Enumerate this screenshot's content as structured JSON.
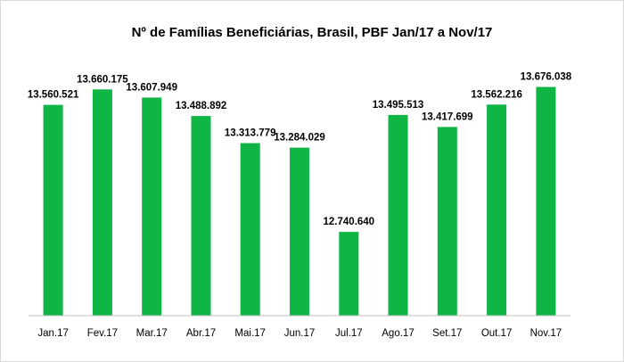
{
  "chart_data": {
    "type": "bar",
    "title": "Nº de Famílias Beneficiárias, Brasil, PBF Jan/17 a Nov/17",
    "xlabel": "",
    "ylabel": "",
    "categories": [
      "Jan.17",
      "Fev.17",
      "Mar.17",
      "Abr.17",
      "Mai.17",
      "Jun.17",
      "Jul.17",
      "Ago.17",
      "Set.17",
      "Out.17",
      "Nov.17"
    ],
    "values": [
      13560521,
      13660175,
      13607949,
      13488892,
      13313779,
      13284029,
      12740640,
      13495513,
      13417699,
      13562216,
      13676038
    ],
    "value_labels": [
      "13.560.521",
      "13.660.175",
      "13.607.949",
      "13.488.892",
      "13.313.779",
      "13.284.029",
      "12.740.640",
      "13.495.513",
      "13.417.699",
      "13.562.216",
      "13.676.038"
    ],
    "ylim": [
      12200000,
      13800000
    ],
    "grid": false,
    "legend": "none",
    "bar_color": "#0fb545",
    "axis_color": "#bfbfbf"
  }
}
